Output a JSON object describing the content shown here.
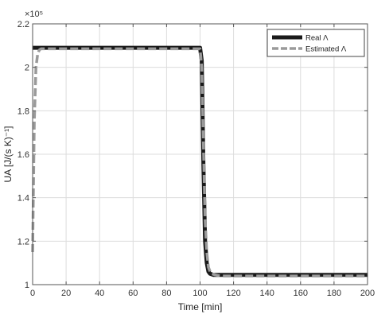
{
  "chart_data": {
    "type": "line",
    "xlabel": "Time [min]",
    "ylabel": "UA [J/(s K)⁻¹]",
    "exponent_label": "×10⁵",
    "xlim": [
      0,
      200
    ],
    "ylim": [
      1.0,
      2.2
    ],
    "x_ticks": [
      0,
      20,
      40,
      60,
      80,
      100,
      120,
      140,
      160,
      180,
      200
    ],
    "x_tick_labels": [
      "0",
      "20",
      "40",
      "60",
      "80",
      "100",
      "120",
      "140",
      "160",
      "180",
      "200"
    ],
    "y_ticks": [
      1.0,
      1.2,
      1.4,
      1.6,
      1.8,
      2.0,
      2.2
    ],
    "y_tick_labels": [
      "1",
      "1.2",
      "1.4",
      "1.6",
      "1.8",
      "2",
      "2.2"
    ],
    "grid": true,
    "legend_position": "top-right",
    "series": [
      {
        "name": "Real Λ",
        "color": "#1a1a1a",
        "style": "solid",
        "x": [
          0,
          100,
          101,
          102,
          103,
          104,
          105,
          106,
          108,
          110,
          200
        ],
        "y": [
          2.09,
          2.09,
          2.03,
          1.55,
          1.2,
          1.1,
          1.06,
          1.05,
          1.045,
          1.045,
          1.045
        ]
      },
      {
        "name": "Estimated Λ",
        "color": "#9a9a9a",
        "style": "dashed",
        "x": [
          0,
          1,
          2,
          3,
          4,
          5,
          10,
          100,
          101,
          102,
          103,
          104,
          105,
          106,
          107,
          109,
          112,
          200
        ],
        "y": [
          1.15,
          1.75,
          2.0,
          2.06,
          2.08,
          2.085,
          2.085,
          2.085,
          2.0,
          1.65,
          1.3,
          1.15,
          1.08,
          1.06,
          1.05,
          1.045,
          1.04,
          1.04
        ]
      }
    ]
  }
}
